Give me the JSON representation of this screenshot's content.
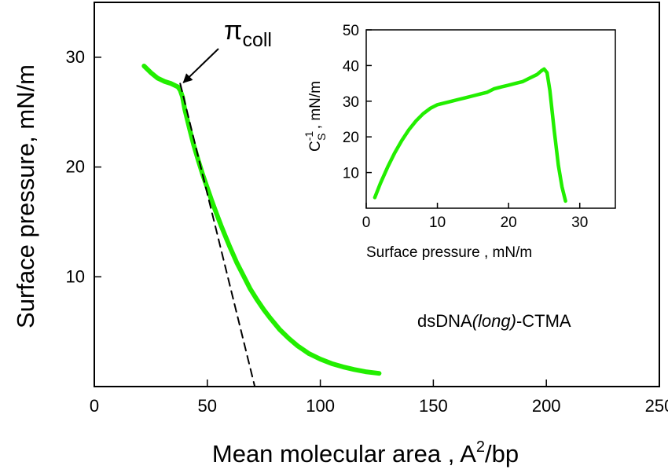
{
  "chart_data": [
    {
      "id": "main",
      "type": "line",
      "xlabel": {
        "main": "Mean molecular area , A",
        "sup": "2",
        "suffix": "/bp"
      },
      "ylabel": "Surface pressure, mN/m",
      "xlim": [
        0,
        250
      ],
      "ylim": [
        0,
        35
      ],
      "xticks": [
        0,
        50,
        100,
        150,
        200,
        250
      ],
      "yticks": [
        10,
        20,
        30
      ],
      "grid": false,
      "series": [
        {
          "color": "#22ee00",
          "style": "solid",
          "x": [
            22,
            25,
            28,
            31,
            34,
            37,
            38,
            39,
            40,
            42,
            44,
            46,
            48,
            50,
            52,
            54,
            56,
            58,
            60,
            63,
            66,
            69,
            72,
            75,
            78,
            82,
            86,
            90,
            95,
            100,
            105,
            110,
            115,
            120,
            126
          ],
          "y": [
            29.2,
            28.6,
            28.1,
            27.8,
            27.6,
            27.3,
            27.0,
            26.4,
            25.3,
            23.6,
            22.0,
            20.6,
            19.3,
            18.1,
            16.9,
            15.8,
            14.7,
            13.7,
            12.7,
            11.3,
            10.1,
            8.9,
            7.9,
            7.0,
            6.2,
            5.2,
            4.4,
            3.7,
            3.0,
            2.5,
            2.1,
            1.8,
            1.55,
            1.35,
            1.2
          ]
        },
        {
          "color": "#000000",
          "style": "dashed",
          "x": [
            38,
            71
          ],
          "y": [
            27.6,
            0
          ]
        }
      ],
      "annotations": [
        {
          "base": "π",
          "sub": "coll",
          "arrow_to": {
            "x": 38,
            "y": 27.4
          }
        },
        {
          "prefix": "dsDNA",
          "italic": "(long)",
          "suffix": "-CTMA"
        }
      ]
    },
    {
      "id": "inset",
      "type": "line",
      "xlabel": "Surface pressure , mN/m",
      "ylabel": {
        "main": "C",
        "sup": "-1",
        "sub": "S",
        "suffix": " , mN/m"
      },
      "xlim": [
        0,
        35
      ],
      "ylim": [
        0,
        50
      ],
      "xticks": [
        0,
        10,
        20,
        30
      ],
      "yticks": [
        10,
        20,
        30,
        40,
        50
      ],
      "grid": false,
      "series": [
        {
          "color": "#22ee00",
          "style": "solid",
          "x": [
            1.2,
            2,
            3,
            4,
            5,
            6,
            7,
            8,
            9,
            10,
            11,
            12,
            13,
            14,
            15,
            16,
            17,
            18,
            19,
            20,
            21,
            22,
            23,
            24,
            24.6,
            25,
            25.4,
            25.8,
            26.4,
            27.0,
            27.5,
            28.0
          ],
          "y": [
            3,
            7,
            11.5,
            15.5,
            19,
            22,
            24.5,
            26.5,
            28,
            29,
            29.5,
            30,
            30.5,
            31,
            31.5,
            32,
            32.5,
            33.5,
            34,
            34.5,
            35,
            35.5,
            36.5,
            37.5,
            38.5,
            39,
            38,
            33,
            22,
            12,
            6,
            2
          ]
        }
      ]
    }
  ]
}
